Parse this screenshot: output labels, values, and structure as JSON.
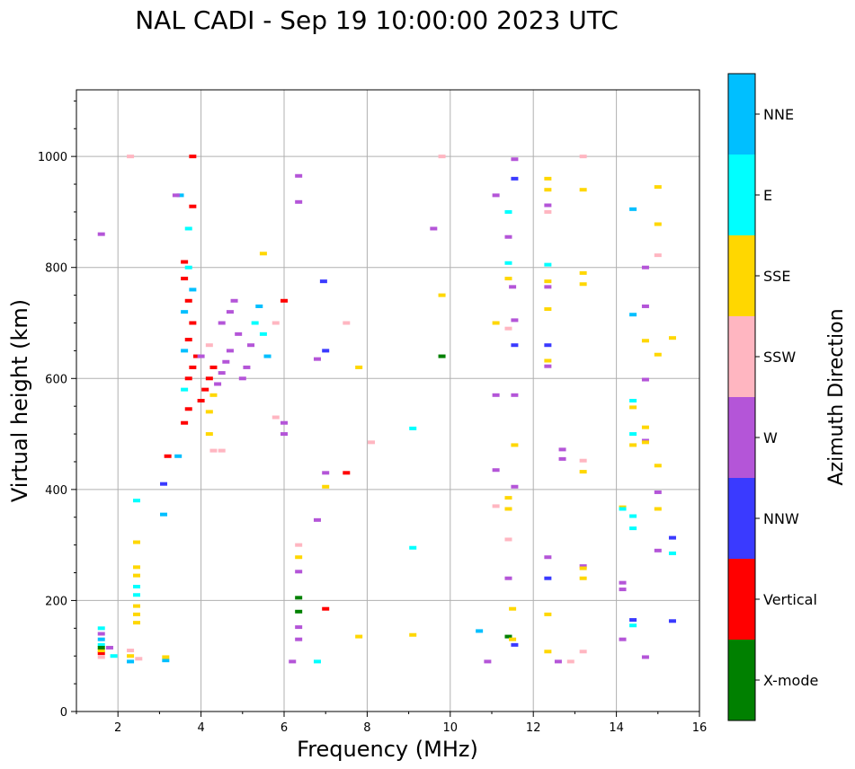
{
  "chart_data": {
    "type": "scatter",
    "title": "NAL CADI - Sep 19 10:00:00 2023 UTC",
    "xlabel": "Frequency (MHz)",
    "ylabel": "Virtual height (km)",
    "xlim": [
      1,
      16
    ],
    "ylim": [
      0,
      1120
    ],
    "xticks": [
      2,
      4,
      6,
      8,
      10,
      12,
      14,
      16
    ],
    "yticks": [
      0,
      200,
      400,
      600,
      800,
      1000
    ],
    "grid": true,
    "colorbar": {
      "label": "Azimuth Direction",
      "categories": [
        {
          "name": "X-mode",
          "color": "#008000"
        },
        {
          "name": "Vertical",
          "color": "#ff0000"
        },
        {
          "name": "NNW",
          "color": "#3a3aff"
        },
        {
          "name": "W",
          "color": "#b455d8"
        },
        {
          "name": "SSW",
          "color": "#ffb6c1"
        },
        {
          "name": "SSE",
          "color": "#ffd700"
        },
        {
          "name": "E",
          "color": "#00ffff"
        },
        {
          "name": "NNE",
          "color": "#00bfff"
        }
      ]
    },
    "points": [
      [
        1.6,
        105,
        "Vertical"
      ],
      [
        1.6,
        110,
        "SSE"
      ],
      [
        1.6,
        120,
        "E"
      ],
      [
        1.6,
        130,
        "NNE"
      ],
      [
        1.6,
        140,
        "W"
      ],
      [
        1.6,
        150,
        "E"
      ],
      [
        1.6,
        98,
        "SSW"
      ],
      [
        1.6,
        115,
        "X-mode"
      ],
      [
        1.8,
        115,
        "W"
      ],
      [
        1.9,
        100,
        "E"
      ],
      [
        2.3,
        100,
        "SSE"
      ],
      [
        2.3,
        90,
        "NNE"
      ],
      [
        2.3,
        110,
        "SSW"
      ],
      [
        2.45,
        160,
        "SSE"
      ],
      [
        2.45,
        175,
        "SSE"
      ],
      [
        2.45,
        190,
        "SSE"
      ],
      [
        2.45,
        210,
        "E"
      ],
      [
        2.45,
        225,
        "E"
      ],
      [
        2.45,
        245,
        "SSE"
      ],
      [
        2.45,
        260,
        "SSE"
      ],
      [
        2.45,
        305,
        "SSE"
      ],
      [
        2.45,
        380,
        "E"
      ],
      [
        2.5,
        95,
        "SSW"
      ],
      [
        3.15,
        92,
        "NNE"
      ],
      [
        3.15,
        98,
        "SSE"
      ],
      [
        3.1,
        355,
        "NNE"
      ],
      [
        3.1,
        410,
        "NNW"
      ],
      [
        3.2,
        460,
        "Vertical"
      ],
      [
        3.45,
        460,
        "NNE"
      ],
      [
        3.6,
        520,
        "Vertical"
      ],
      [
        3.7,
        545,
        "Vertical"
      ],
      [
        3.6,
        580,
        "E"
      ],
      [
        3.7,
        600,
        "Vertical"
      ],
      [
        3.8,
        620,
        "Vertical"
      ],
      [
        3.9,
        640,
        "Vertical"
      ],
      [
        3.6,
        650,
        "NNE"
      ],
      [
        3.7,
        670,
        "Vertical"
      ],
      [
        3.8,
        700,
        "Vertical"
      ],
      [
        3.6,
        720,
        "NNE"
      ],
      [
        3.7,
        740,
        "Vertical"
      ],
      [
        3.8,
        760,
        "NNE"
      ],
      [
        3.6,
        780,
        "Vertical"
      ],
      [
        3.7,
        800,
        "E"
      ],
      [
        3.6,
        810,
        "Vertical"
      ],
      [
        4.0,
        560,
        "Vertical"
      ],
      [
        4.1,
        580,
        "Vertical"
      ],
      [
        4.2,
        600,
        "Vertical"
      ],
      [
        4.3,
        620,
        "Vertical"
      ],
      [
        4.0,
        640,
        "W"
      ],
      [
        4.2,
        660,
        "SSW"
      ],
      [
        4.3,
        570,
        "SSE"
      ],
      [
        4.2,
        540,
        "SSE"
      ],
      [
        4.2,
        500,
        "SSE"
      ],
      [
        4.3,
        470,
        "SSW"
      ],
      [
        4.5,
        470,
        "SSW"
      ],
      [
        4.4,
        590,
        "W"
      ],
      [
        4.5,
        610,
        "W"
      ],
      [
        4.6,
        630,
        "W"
      ],
      [
        4.7,
        650,
        "W"
      ],
      [
        4.5,
        700,
        "W"
      ],
      [
        4.7,
        720,
        "W"
      ],
      [
        4.9,
        680,
        "W"
      ],
      [
        5.0,
        600,
        "W"
      ],
      [
        5.1,
        620,
        "W"
      ],
      [
        5.2,
        660,
        "W"
      ],
      [
        4.8,
        740,
        "W"
      ],
      [
        5.3,
        700,
        "E"
      ],
      [
        5.5,
        680,
        "E"
      ],
      [
        5.6,
        640,
        "NNE"
      ],
      [
        5.4,
        730,
        "NNE"
      ],
      [
        5.8,
        700,
        "SSW"
      ],
      [
        6.0,
        740,
        "Vertical"
      ],
      [
        6.0,
        520,
        "W"
      ],
      [
        6.0,
        500,
        "W"
      ],
      [
        5.8,
        530,
        "SSW"
      ],
      [
        3.8,
        1000,
        "Vertical"
      ],
      [
        3.8,
        910,
        "Vertical"
      ],
      [
        3.7,
        870,
        "E"
      ],
      [
        3.5,
        930,
        "NNE"
      ],
      [
        3.4,
        930,
        "W"
      ],
      [
        2.3,
        1000,
        "SSW"
      ],
      [
        1.6,
        860,
        "W"
      ],
      [
        5.5,
        825,
        "SSE"
      ],
      [
        6.35,
        965,
        "W"
      ],
      [
        6.35,
        918,
        "W"
      ],
      [
        6.95,
        775,
        "NNW"
      ],
      [
        7.0,
        650,
        "NNW"
      ],
      [
        6.8,
        635,
        "W"
      ],
      [
        7.5,
        700,
        "SSW"
      ],
      [
        7.8,
        620,
        "SSE"
      ],
      [
        8.1,
        485,
        "SSW"
      ],
      [
        7.0,
        430,
        "W"
      ],
      [
        7.0,
        405,
        "SSE"
      ],
      [
        7.5,
        430,
        "Vertical"
      ],
      [
        6.8,
        345,
        "W"
      ],
      [
        6.35,
        300,
        "SSW"
      ],
      [
        6.35,
        278,
        "SSE"
      ],
      [
        6.35,
        252,
        "W"
      ],
      [
        6.35,
        205,
        "X-mode"
      ],
      [
        6.35,
        180,
        "X-mode"
      ],
      [
        6.35,
        152,
        "W"
      ],
      [
        6.35,
        130,
        "W"
      ],
      [
        6.2,
        90,
        "W"
      ],
      [
        6.8,
        90,
        "E"
      ],
      [
        7.0,
        185,
        "Vertical"
      ],
      [
        7.8,
        135,
        "SSE"
      ],
      [
        9.1,
        138,
        "SSE"
      ],
      [
        9.1,
        295,
        "E"
      ],
      [
        9.1,
        510,
        "E"
      ],
      [
        9.8,
        640,
        "X-mode"
      ],
      [
        9.8,
        750,
        "SSE"
      ],
      [
        9.6,
        870,
        "W"
      ],
      [
        9.8,
        1000,
        "SSW"
      ],
      [
        10.7,
        145,
        "NNE"
      ],
      [
        10.9,
        90,
        "W"
      ],
      [
        11.1,
        930,
        "W"
      ],
      [
        11.1,
        700,
        "SSE"
      ],
      [
        11.1,
        570,
        "W"
      ],
      [
        11.1,
        435,
        "W"
      ],
      [
        11.1,
        370,
        "SSW"
      ],
      [
        11.4,
        310,
        "SSW"
      ],
      [
        11.4,
        240,
        "W"
      ],
      [
        11.4,
        135,
        "X-mode"
      ],
      [
        11.5,
        130,
        "SSE"
      ],
      [
        11.55,
        120,
        "NNW"
      ],
      [
        11.5,
        185,
        "SSE"
      ],
      [
        11.4,
        385,
        "SSE"
      ],
      [
        11.4,
        365,
        "SSE"
      ],
      [
        11.55,
        405,
        "W"
      ],
      [
        11.55,
        480,
        "SSE"
      ],
      [
        11.55,
        570,
        "W"
      ],
      [
        11.55,
        660,
        "NNW"
      ],
      [
        11.4,
        690,
        "SSW"
      ],
      [
        11.55,
        705,
        "W"
      ],
      [
        11.5,
        765,
        "W"
      ],
      [
        11.4,
        780,
        "SSE"
      ],
      [
        11.4,
        808,
        "E"
      ],
      [
        11.4,
        855,
        "W"
      ],
      [
        11.4,
        900,
        "E"
      ],
      [
        11.55,
        960,
        "NNW"
      ],
      [
        11.55,
        995,
        "W"
      ],
      [
        12.35,
        960,
        "SSE"
      ],
      [
        12.35,
        940,
        "SSE"
      ],
      [
        12.35,
        912,
        "W"
      ],
      [
        12.35,
        900,
        "SSW"
      ],
      [
        12.35,
        805,
        "E"
      ],
      [
        12.35,
        775,
        "SSE"
      ],
      [
        12.35,
        765,
        "W"
      ],
      [
        12.35,
        725,
        "SSE"
      ],
      [
        12.35,
        660,
        "NNW"
      ],
      [
        12.35,
        632,
        "SSE"
      ],
      [
        12.35,
        622,
        "W"
      ],
      [
        12.7,
        472,
        "W"
      ],
      [
        12.7,
        455,
        "W"
      ],
      [
        12.35,
        278,
        "W"
      ],
      [
        12.35,
        240,
        "NNW"
      ],
      [
        12.35,
        175,
        "SSE"
      ],
      [
        12.35,
        108,
        "SSE"
      ],
      [
        12.6,
        90,
        "W"
      ],
      [
        12.9,
        90,
        "SSW"
      ],
      [
        13.2,
        1000,
        "SSW"
      ],
      [
        13.2,
        940,
        "SSE"
      ],
      [
        13.2,
        790,
        "SSE"
      ],
      [
        13.2,
        770,
        "SSE"
      ],
      [
        13.2,
        452,
        "SSW"
      ],
      [
        13.2,
        432,
        "SSE"
      ],
      [
        13.2,
        262,
        "W"
      ],
      [
        13.2,
        258,
        "SSE"
      ],
      [
        13.2,
        240,
        "SSE"
      ],
      [
        13.2,
        108,
        "SSW"
      ],
      [
        14.15,
        368,
        "SSE"
      ],
      [
        14.15,
        365,
        "E"
      ],
      [
        14.15,
        232,
        "W"
      ],
      [
        14.15,
        220,
        "W"
      ],
      [
        14.15,
        130,
        "W"
      ],
      [
        14.4,
        165,
        "NNW"
      ],
      [
        14.4,
        155,
        "E"
      ],
      [
        14.4,
        330,
        "E"
      ],
      [
        14.4,
        352,
        "E"
      ],
      [
        14.4,
        480,
        "SSE"
      ],
      [
        14.4,
        500,
        "E"
      ],
      [
        14.4,
        548,
        "SSE"
      ],
      [
        14.4,
        560,
        "E"
      ],
      [
        14.4,
        715,
        "NNE"
      ],
      [
        14.4,
        905,
        "NNE"
      ],
      [
        14.7,
        800,
        "W"
      ],
      [
        14.7,
        730,
        "W"
      ],
      [
        14.7,
        668,
        "SSE"
      ],
      [
        14.7,
        598,
        "W"
      ],
      [
        14.7,
        512,
        "SSE"
      ],
      [
        14.7,
        488,
        "W"
      ],
      [
        14.7,
        485,
        "SSE"
      ],
      [
        14.7,
        98,
        "W"
      ],
      [
        15.0,
        945,
        "SSE"
      ],
      [
        15.0,
        878,
        "SSE"
      ],
      [
        15.0,
        822,
        "SSW"
      ],
      [
        15.0,
        643,
        "SSE"
      ],
      [
        15.0,
        443,
        "SSE"
      ],
      [
        15.0,
        395,
        "W"
      ],
      [
        15.0,
        365,
        "SSE"
      ],
      [
        15.0,
        290,
        "W"
      ],
      [
        15.35,
        673,
        "SSE"
      ],
      [
        15.35,
        313,
        "NNW"
      ],
      [
        15.35,
        285,
        "E"
      ],
      [
        15.35,
        163,
        "NNW"
      ]
    ]
  }
}
